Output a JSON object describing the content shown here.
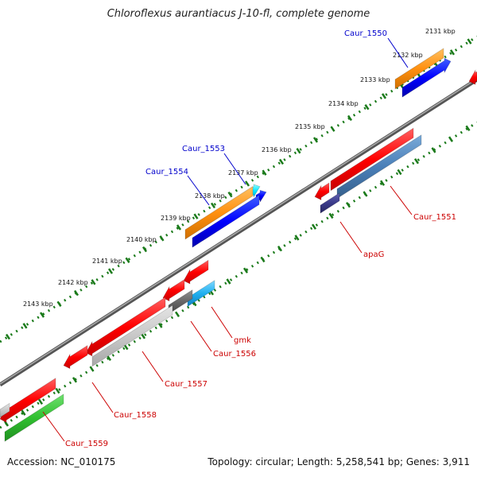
{
  "title": "Chloroflexus aurantiacus J-10-fl, complete genome",
  "accession": "Accession: NC_010175",
  "topology": "Topology: circular; Length: 5,258,541 bp; Genes: 3,911",
  "ruler": [
    "2131 kbp",
    "2132 kbp",
    "2133 kbp",
    "2134 kbp",
    "2135 kbp",
    "2136 kbp",
    "2137 kbp",
    "2138 kbp",
    "2139 kbp",
    "2140 kbp",
    "2141 kbp",
    "2142 kbp",
    "2143 kbp"
  ],
  "gene_labels": {
    "caur_1550": "Caur_1550",
    "caur_1553": "Caur_1553",
    "caur_1554": "Caur_1554",
    "caur_1551": "Caur_1551",
    "apag": "apaG",
    "gmk": "gmk",
    "caur_1556": "Caur_1556",
    "caur_1557": "Caur_1557",
    "caur_1558": "Caur_1558",
    "caur_1559": "Caur_1559"
  },
  "colors": {
    "forward_cds": "#ff0000",
    "forward_rna": "#ff8c00",
    "reverse_cds": "#0000ff",
    "label_forward": "#0000cc",
    "label_reverse": "#cc0000",
    "ruler": "#1a7a1a",
    "backbone": "#888888"
  }
}
